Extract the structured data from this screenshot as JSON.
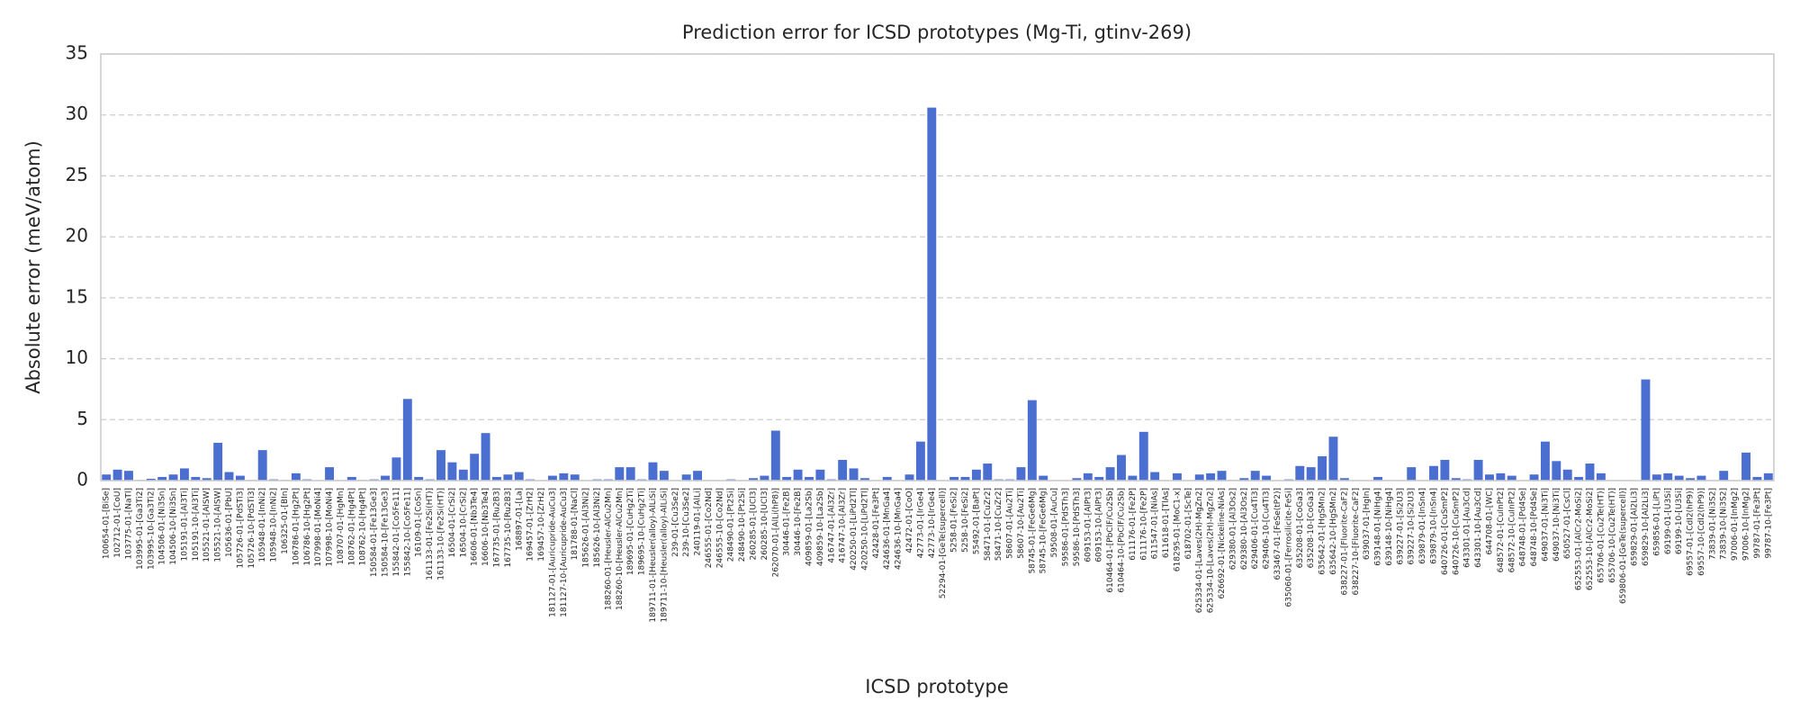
{
  "chart_data": {
    "type": "bar",
    "title": "Prediction error for ICSD prototypes (Mg-Ti, gtinv-269)",
    "x_label": "ICSD prototype",
    "y_label": "Absolute error (meV/atom)",
    "color": "#4a6fd1",
    "grid": true,
    "ylim": [
      0,
      35
    ],
    "yticks": [
      0,
      5,
      10,
      15,
      20,
      25,
      30,
      35
    ],
    "categories": [
      "100654-01-[BiSe]",
      "102712-01-[CoU]",
      "103775-01-[NaTl]",
      "103995-01-[Ga3Ti2]",
      "103995-10-[Ga3Ti2]",
      "104506-01-[Ni3Sn]",
      "104506-10-[Ni3Sn]",
      "105191-01-[Al3Ti]",
      "105191-10-[Al3Ti]",
      "105521-01-[AlSW]",
      "105521-10-[AlSW]",
      "105636-01-[PbU]",
      "105726-01-[PdSTi3]",
      "105726-10-[PdSTi3]",
      "105948-01-[InNi2]",
      "105948-10-[InNi2]",
      "106325-01-[BIn]",
      "106786-01-[Hg2Pt]",
      "106786-10-[Hg2Pt]",
      "107998-01-[MoNi4]",
      "107998-10-[MoNi4]",
      "108707-01-[HgMn]",
      "108762-01-[Hg4Pt]",
      "108762-10-[Hg4Pt]",
      "150584-01-[Fe13Ge3]",
      "150584-10-[Fe13Ge3]",
      "155842-01-[Co5Fe11]",
      "155842-10-[Co5Fe11]",
      "16109-01-[CoSn]",
      "161133-01-[Fe2Si(HT)]",
      "161133-10-[Fe2Si(HT)]",
      "16504-01-[CrSi2]",
      "16504-10-[CrSi2]",
      "16606-01-[Nb3Te4]",
      "16606-10-[Nb3Te4]",
      "167735-01-[Ru2B3]",
      "167735-10-[Ru2B3]",
      "168897-01-[La]",
      "169457-01-[ZrH2]",
      "169457-10-[ZrH2]",
      "181127-01-[Auricupride-AuCu3]",
      "181127-10-[Auricupride-AuCu3]",
      "181788-01-[NaCl]",
      "185626-01-[Al3Ni2]",
      "185626-10-[Al3Ni2]",
      "188260-01-[Heusler-AlCu2Mn]",
      "188260-10-[Heusler-AlCu2Mn]",
      "189695-01-[CuHg2Ti]",
      "189695-10-[CuHg2Ti]",
      "189711-01-[Heusler(alloy)-AlLiSi]",
      "189711-10-[Heusler(alloy)-AlLiSi]",
      "239-01-[Cu3Se2]",
      "239-10-[Cu3Se2]",
      "240119-01-[AlLi]",
      "246555-01-[Co2Nd]",
      "246555-10-[Co2Nd]",
      "248490-01-[Pt2Si]",
      "248490-10-[Pt2Si]",
      "260285-01-[UCl3]",
      "260285-10-[UCl3]",
      "262070-01-[AlLi(hP8)]",
      "30446-01-[Fe2B]",
      "30446-10-[Fe2B]",
      "409859-01-[La2Sb]",
      "409859-10-[La2Sb]",
      "416747-01-[Al3Zr]",
      "416747-10-[Al3Zr]",
      "420250-01-[LiPd2Tl]",
      "420250-10-[LiPd2Tl]",
      "42428-01-[Fe3Pt]",
      "424636-01-[MnGa4]",
      "424636-10-[MnGa4]",
      "42472-01-[CoO]",
      "42773-01-[IrGe4]",
      "42773-10-[IrGe4]",
      "52294-01-[GeTe(supercell)]",
      "5258-01-[FeSi2]",
      "5258-10-[FeSi2]",
      "55492-01-[BaPt]",
      "58471-01-[CuZr2]",
      "58471-10-[CuZr2]",
      "58607-01-[Au2Ti]",
      "58607-10-[Au2Ti]",
      "58745-01-[FeGe6Mg]",
      "58745-10-[FeGe6Mg]",
      "59508-01-[AuCu]",
      "59586-01-[PdSTh3]",
      "59586-10-[PdSTh3]",
      "609153-01-[AlPt3]",
      "609153-10-[AlPt3]",
      "610464-01-[PbClF/Cu2Sb]",
      "610464-10-[PbClF/Cu2Sb]",
      "611176-01-[Fe2P]",
      "611176-10-[Fe2P]",
      "611547-01-[NiAs]",
      "611618-01-[TlAs]",
      "618295-01-[MoC1-x]",
      "618702-01-[ScTe]",
      "625334-01-[Laves(2H)-MgZn2]",
      "625334-10-[Laves(2H)-MgZn2]",
      "626692-01-[Nickeline-NiAs]",
      "629380-01-[Al3Os2]",
      "629380-10-[Al3Os2]",
      "629406-01-[Cu4Ti3]",
      "629406-10-[Cu4Ti3]",
      "633467-01-[FeSe(tP2)]",
      "635060-01-[Ferrosilicite-FeSi]",
      "635208-01-[CoGa3]",
      "635208-10-[CoGa3]",
      "635642-01-[HgSMn2]",
      "635642-10-[HgSMn2]",
      "638227-01-[Fluorite-CaF2]",
      "638227-10-[Fluorite-CaF2]",
      "639037-01-[HgIn]",
      "639148-01-[NiHg4]",
      "639148-10-[NiHg4]",
      "639227-01-[Si2U3]",
      "639227-10-[Si2U3]",
      "639879-01-[InSn4]",
      "639879-10-[InSn4]",
      "640726-01-[CuSmP2]",
      "640726-10-[CuSmP2]",
      "643301-01-[Au3Cd]",
      "643301-10-[Au3Cd]",
      "644708-01-[WC]",
      "648572-01-[CuInPt2]",
      "648572-10-[CuInPt2]",
      "648748-01-[Pd4Se]",
      "648748-10-[Pd4Se]",
      "649037-01-[Ni3Ti]",
      "649037-10-[Ni3Ti]",
      "650527-01-[CsCl]",
      "652553-01-[AlCr2-MoSi2]",
      "652553-10-[AlCr2-MoSi2]",
      "655706-01-[Cu2Te(HT)]",
      "655706-10-[Cu2Te(HT)]",
      "659806-01-[GeTe(supercell)]",
      "659829-01-[Al2Li3]",
      "659829-10-[Al2Li3]",
      "659856-01-[LiPt]",
      "69199-01-[U3Si]",
      "69199-10-[U3Si]",
      "69557-01-[CdI2(hP9)]",
      "69557-10-[CdI2(hP9)]",
      "73839-01-[Ni3S2]",
      "73839-10-[Ni3S2]",
      "97006-01-[InMg2]",
      "97006-10-[InMg2]",
      "99787-01-[Fe3Pt]",
      "99787-10-[Fe3Pt]"
    ],
    "values": [
      0.5,
      0.9,
      0.8,
      0.05,
      0.15,
      0.3,
      0.5,
      1.0,
      0.3,
      0.2,
      3.1,
      0.7,
      0.4,
      0.05,
      2.5,
      0.1,
      0.05,
      0.6,
      0.1,
      0.02,
      1.1,
      0.02,
      0.3,
      0.05,
      0.1,
      0.4,
      1.9,
      6.7,
      0.3,
      0.1,
      2.5,
      1.5,
      0.9,
      2.2,
      3.9,
      0.3,
      0.5,
      0.7,
      0.1,
      0.02,
      0.4,
      0.6,
      0.5,
      0.02,
      0.1,
      0.1,
      1.1,
      1.1,
      0.1,
      1.5,
      0.8,
      0.02,
      0.5,
      0.8,
      0.02,
      0.02,
      0.1,
      0.02,
      0.2,
      0.4,
      4.1,
      0.3,
      0.9,
      0.3,
      0.9,
      0.1,
      1.7,
      1.0,
      0.2,
      0.02,
      0.3,
      0.02,
      0.5,
      3.2,
      30.6,
      0.02,
      0.3,
      0.3,
      0.9,
      1.4,
      0.1,
      0.1,
      1.1,
      6.6,
      0.4,
      0.02,
      0.02,
      0.2,
      0.6,
      0.3,
      1.1,
      2.1,
      0.4,
      4.0,
      0.7,
      0.02,
      0.6,
      0.02,
      0.5,
      0.6,
      0.8,
      0.05,
      0.2,
      0.8,
      0.4,
      0.02,
      0.1,
      1.2,
      1.1,
      2.0,
      3.6,
      0.2,
      0.02,
      0.02,
      0.3,
      0.02,
      0.02,
      1.1,
      0.02,
      1.2,
      1.7,
      0.2,
      0.1,
      1.7,
      0.5,
      0.6,
      0.4,
      0.02,
      0.5,
      3.2,
      1.6,
      0.9,
      0.3,
      1.4,
      0.6,
      0.02,
      0.02,
      0.02,
      8.3,
      0.5,
      0.6,
      0.4,
      0.2,
      0.4,
      0.02,
      0.8,
      0.02,
      2.3,
      0.3,
      0.6
    ]
  }
}
